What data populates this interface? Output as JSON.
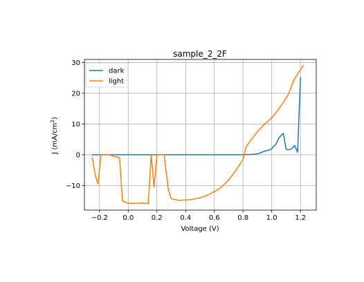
{
  "chart_data": {
    "type": "line",
    "title": "sample_2_2F",
    "xlabel": "Voltage (V)",
    "ylabel_main": "J (mA/cm",
    "ylabel_sup": "2",
    "ylabel_tail": ")",
    "xlim": [
      -0.305,
      1.31
    ],
    "ylim": [
      -18.0,
      31.0
    ],
    "xticks": [
      -0.2,
      0.0,
      0.2,
      0.4,
      0.6,
      0.8,
      1.0,
      1.2
    ],
    "xtick_labels": [
      "−0.2",
      "0.0",
      "0.2",
      "0.4",
      "0.6",
      "0.8",
      "1.0",
      "1.2"
    ],
    "yticks": [
      -10,
      0,
      10,
      20,
      30
    ],
    "ytick_labels": [
      "−10",
      "0",
      "10",
      "20",
      "30"
    ],
    "grid": true,
    "legend_position": "top-left",
    "series": [
      {
        "name": "dark",
        "color": "#1f77b4",
        "points": [
          [
            -0.25,
            0.0
          ],
          [
            -0.15,
            0.0
          ],
          [
            0.0,
            0.0
          ],
          [
            0.2,
            0.0
          ],
          [
            0.4,
            0.0
          ],
          [
            0.6,
            0.0
          ],
          [
            0.75,
            0.0
          ],
          [
            0.8,
            0.05
          ],
          [
            0.85,
            0.1
          ],
          [
            0.9,
            0.3
          ],
          [
            0.92,
            0.6
          ],
          [
            0.95,
            1.2
          ],
          [
            0.98,
            1.5
          ],
          [
            1.0,
            2.0
          ],
          [
            1.03,
            3.5
          ],
          [
            1.05,
            5.5
          ],
          [
            1.08,
            7.0
          ],
          [
            1.1,
            1.8
          ],
          [
            1.12,
            1.6
          ],
          [
            1.14,
            2.0
          ],
          [
            1.16,
            3.0
          ],
          [
            1.18,
            0.8
          ],
          [
            1.2,
            25.0
          ]
        ]
      },
      {
        "name": "light",
        "color": "#ff7f0e",
        "points": [
          [
            -0.25,
            -1.0
          ],
          [
            -0.23,
            -6.5
          ],
          [
            -0.21,
            -9.5
          ],
          [
            -0.19,
            0.0
          ],
          [
            -0.13,
            0.0
          ],
          [
            -0.1,
            -0.5
          ],
          [
            -0.06,
            -1.0
          ],
          [
            -0.04,
            -15.0
          ],
          [
            0.0,
            -15.8
          ],
          [
            0.05,
            -15.8
          ],
          [
            0.1,
            -15.7
          ],
          [
            0.14,
            -15.8
          ],
          [
            0.16,
            0.0
          ],
          [
            0.18,
            -10.5
          ],
          [
            0.2,
            0.0
          ],
          [
            0.25,
            0.0
          ],
          [
            0.28,
            -11.5
          ],
          [
            0.3,
            -14.3
          ],
          [
            0.35,
            -14.8
          ],
          [
            0.4,
            -14.7
          ],
          [
            0.45,
            -14.5
          ],
          [
            0.5,
            -14.0
          ],
          [
            0.55,
            -13.2
          ],
          [
            0.6,
            -12.0
          ],
          [
            0.65,
            -10.5
          ],
          [
            0.7,
            -8.2
          ],
          [
            0.75,
            -5.0
          ],
          [
            0.8,
            -1.5
          ],
          [
            0.82,
            2.5
          ],
          [
            0.85,
            4.5
          ],
          [
            0.9,
            7.5
          ],
          [
            0.95,
            10.0
          ],
          [
            1.0,
            12.0
          ],
          [
            1.05,
            15.0
          ],
          [
            1.08,
            17.0
          ],
          [
            1.12,
            20.0
          ],
          [
            1.15,
            24.0
          ],
          [
            1.19,
            27.0
          ],
          [
            1.22,
            29.0
          ]
        ]
      }
    ]
  }
}
